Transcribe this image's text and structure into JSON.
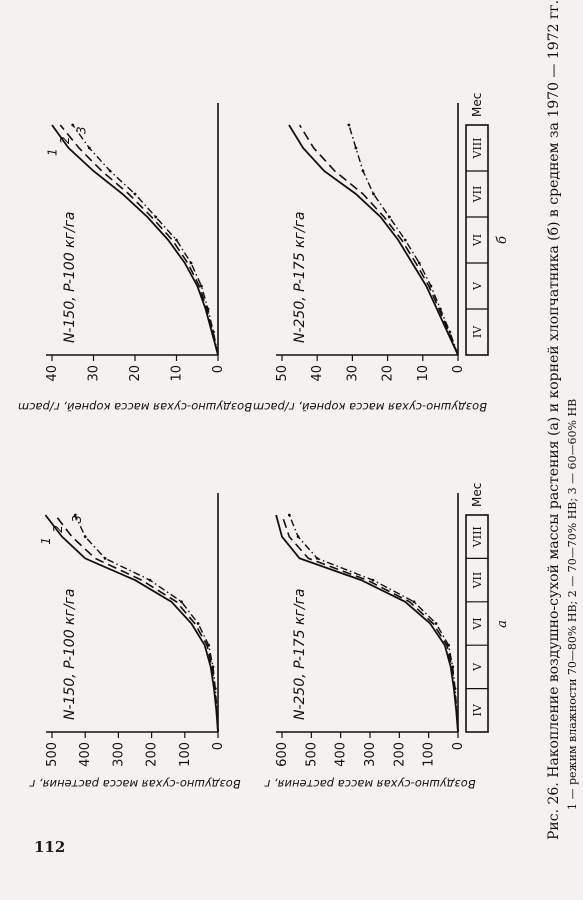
{
  "page_number": "112",
  "caption": {
    "line1": "Рис. 26. Накопление воздушно-сухой массы растения (а)     и корней хлопчатника (б) в среднем за 1970 — 1972 гг.:",
    "line2": "1 — режим влажности 70—80%                                    НВ; 2 — 70—70% НВ; 3 — 60—60% НВ"
  },
  "shared": {
    "xlabel_unit": "Мес",
    "months": [
      "IV",
      "V",
      "VI",
      "VII",
      "VIII"
    ],
    "ylabel_plant": "Воздушно-сухая масса растения, г",
    "ylabel_roots": "Воздушно-сухая масса корней, г/расm",
    "sub_a": "а",
    "sub_b": "б",
    "curve_numbers": [
      "1",
      "2",
      "3"
    ]
  },
  "chart_data": [
    {
      "id": "a-top",
      "type": "line",
      "title": "N-150, P-100 кг/га",
      "ylabel": "Воздушно-сухая масса растения, г",
      "ylim": [
        0,
        500
      ],
      "yticks": [
        0,
        100,
        200,
        300,
        400,
        500
      ],
      "x": [
        0,
        0.5,
        1,
        1.5,
        2,
        2.5,
        3,
        3.5,
        4,
        4.5,
        5
      ],
      "series": [
        {
          "name": "1",
          "values": [
            0,
            5,
            12,
            22,
            40,
            80,
            140,
            250,
            400,
            470,
            520
          ]
        },
        {
          "name": "2",
          "values": [
            0,
            4,
            10,
            18,
            33,
            70,
            125,
            230,
            370,
            440,
            490
          ]
        },
        {
          "name": "3",
          "values": [
            0,
            3,
            8,
            15,
            28,
            60,
            110,
            205,
            340,
            400,
            430
          ]
        }
      ]
    },
    {
      "id": "a-bottom",
      "type": "line",
      "title": "N-250, P-175 кг/га",
      "ylabel": "Воздушно-сухая масса растения, г",
      "ylim": [
        0,
        600
      ],
      "yticks": [
        0,
        100,
        200,
        300,
        400,
        500,
        600
      ],
      "x": [
        0,
        0.5,
        1,
        1.5,
        2,
        2.5,
        3,
        3.5,
        4,
        4.5,
        5
      ],
      "series": [
        {
          "name": "1",
          "values": [
            0,
            6,
            14,
            25,
            45,
            95,
            180,
            330,
            540,
            600,
            620
          ]
        },
        {
          "name": "2",
          "values": [
            0,
            5,
            12,
            21,
            38,
            85,
            165,
            310,
            510,
            575,
            600
          ]
        },
        {
          "name": "3",
          "values": [
            0,
            4,
            10,
            18,
            32,
            75,
            150,
            290,
            480,
            545,
            575
          ]
        }
      ]
    },
    {
      "id": "b-top",
      "type": "line",
      "title": "N-150, P-100 кг/га",
      "ylabel": "Воздушно-сухая масса корней, г/расm",
      "ylim": [
        0,
        40
      ],
      "yticks": [
        0,
        10,
        20,
        30,
        40
      ],
      "x": [
        0,
        0.5,
        1,
        1.5,
        2,
        2.5,
        3,
        3.5,
        4,
        4.5,
        5
      ],
      "series": [
        {
          "name": "1",
          "values": [
            0,
            1.5,
            3,
            5,
            8,
            12,
            17,
            23,
            30,
            36,
            40
          ]
        },
        {
          "name": "2",
          "values": [
            0,
            1.3,
            2.7,
            4.5,
            7.3,
            11,
            16,
            21.5,
            28,
            33.5,
            38
          ]
        },
        {
          "name": "3",
          "values": [
            0,
            1.1,
            2.4,
            4,
            6.5,
            10,
            15,
            20,
            26,
            31,
            35
          ]
        }
      ]
    },
    {
      "id": "b-bottom",
      "type": "line",
      "title": "N-250, P-175 кг/га",
      "ylabel": "Воздушно-сухая масса корней, г/расm",
      "ylim": [
        0,
        50
      ],
      "yticks": [
        0,
        10,
        20,
        30,
        40,
        50
      ],
      "x": [
        0,
        0.5,
        1,
        1.5,
        2,
        2.5,
        3,
        3.5,
        4,
        4.5,
        5
      ],
      "series": [
        {
          "name": "1",
          "values": [
            0,
            3,
            6,
            9,
            13,
            17,
            22,
            29,
            38,
            44,
            48
          ]
        },
        {
          "name": "2",
          "values": [
            0,
            2.6,
            5.4,
            8.3,
            12,
            16,
            21,
            27,
            35,
            41,
            45
          ]
        },
        {
          "name": "3",
          "values": [
            0,
            2.3,
            5,
            7.7,
            11,
            15,
            19.5,
            24,
            27,
            29,
            31
          ]
        }
      ]
    }
  ]
}
